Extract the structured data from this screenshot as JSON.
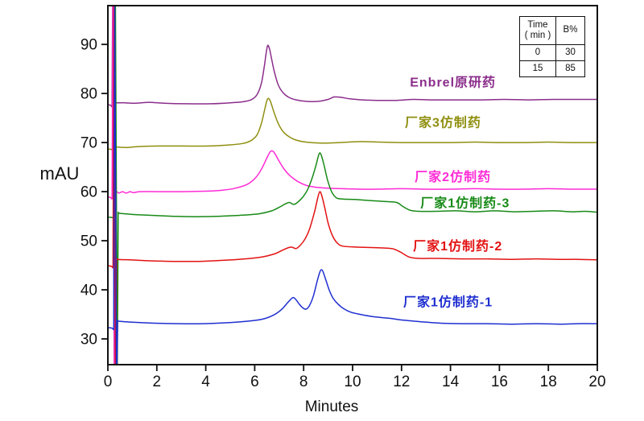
{
  "chart_data": {
    "type": "line",
    "title": "",
    "xlabel": "Minutes",
    "ylabel": "mAU",
    "xlim": [
      0,
      20
    ],
    "ylim": [
      24.75,
      97.9
    ],
    "x_ticks": [
      0,
      2,
      4,
      6,
      8,
      10,
      12,
      14,
      16,
      18,
      20
    ],
    "y_ticks": [
      30,
      40,
      50,
      60,
      70,
      80,
      90
    ],
    "grid": false,
    "axis_color": "#111111",
    "legend": "inline-colored-labels",
    "series": [
      {
        "name": "Enbrel原研药",
        "color": "#8b2e8b",
        "label_pos": [
          14.1,
          82.4
        ],
        "main_peak": {
          "time_min": 6.5,
          "apex_mau": 89.8
        },
        "baseline_mau": 78,
        "points": [
          [
            0,
            77.7
          ],
          [
            0.12,
            77.6
          ],
          [
            0.17,
            77.4
          ],
          [
            0.2,
            98
          ],
          [
            0.26,
            24.5
          ],
          [
            0.3,
            78.2
          ],
          [
            0.34,
            78.1
          ],
          [
            0.7,
            78.1
          ],
          [
            1.1,
            78.0
          ],
          [
            1.7,
            78.2
          ],
          [
            2.3,
            78.0
          ],
          [
            3.2,
            77.9
          ],
          [
            4.2,
            77.9
          ],
          [
            5.0,
            78.1
          ],
          [
            5.5,
            78.3
          ],
          [
            5.85,
            78.7
          ],
          [
            6.1,
            79.8
          ],
          [
            6.28,
            82.2
          ],
          [
            6.4,
            85.8
          ],
          [
            6.47,
            88.3
          ],
          [
            6.53,
            89.8
          ],
          [
            6.6,
            89.2
          ],
          [
            6.68,
            87.3
          ],
          [
            6.8,
            84.5
          ],
          [
            6.95,
            81.9
          ],
          [
            7.15,
            80.2
          ],
          [
            7.4,
            79.2
          ],
          [
            7.7,
            78.7
          ],
          [
            8.1,
            78.4
          ],
          [
            8.6,
            78.4
          ],
          [
            9.0,
            78.8
          ],
          [
            9.25,
            79.3
          ],
          [
            9.55,
            79.2
          ],
          [
            9.9,
            78.9
          ],
          [
            10.4,
            78.7
          ],
          [
            11.0,
            78.6
          ],
          [
            11.8,
            78.6
          ],
          [
            12.5,
            78.8
          ],
          [
            13.2,
            78.7
          ],
          [
            14.2,
            78.7
          ],
          [
            15.2,
            78.7
          ],
          [
            16.2,
            78.8
          ],
          [
            17.2,
            78.7
          ],
          [
            18.2,
            78.8
          ],
          [
            19.1,
            78.8
          ],
          [
            20,
            78.8
          ]
        ]
      },
      {
        "name": "厂家3仿制药",
        "color": "#8f8f10",
        "label_pos": [
          13.7,
          74.2
        ],
        "main_peak": {
          "time_min": 6.55,
          "apex_mau": 79.0
        },
        "baseline_mau": 69.5,
        "points": [
          [
            0,
            68.7
          ],
          [
            0.14,
            68.6
          ],
          [
            0.2,
            68.4
          ],
          [
            0.24,
            98
          ],
          [
            0.3,
            24.5
          ],
          [
            0.34,
            69.2
          ],
          [
            0.38,
            69.1
          ],
          [
            0.8,
            69.0
          ],
          [
            1.3,
            69.2
          ],
          [
            2.1,
            69.3
          ],
          [
            3.1,
            69.3
          ],
          [
            4.1,
            69.3
          ],
          [
            4.9,
            69.5
          ],
          [
            5.5,
            69.8
          ],
          [
            5.85,
            70.4
          ],
          [
            6.1,
            71.6
          ],
          [
            6.28,
            74.0
          ],
          [
            6.42,
            77.0
          ],
          [
            6.5,
            78.6
          ],
          [
            6.57,
            79.0
          ],
          [
            6.65,
            78.3
          ],
          [
            6.78,
            76.3
          ],
          [
            6.95,
            74.0
          ],
          [
            7.15,
            72.3
          ],
          [
            7.4,
            71.2
          ],
          [
            7.7,
            70.5
          ],
          [
            8.1,
            70.1
          ],
          [
            8.7,
            69.9
          ],
          [
            9.5,
            70.0
          ],
          [
            10.3,
            70.2
          ],
          [
            11.1,
            70.1
          ],
          [
            12,
            70.0
          ],
          [
            13,
            70.0
          ],
          [
            14,
            70.0
          ],
          [
            15,
            70.1
          ],
          [
            16,
            70.0
          ],
          [
            17,
            70.0
          ],
          [
            18,
            70.1
          ],
          [
            19,
            70.0
          ],
          [
            20,
            70.0
          ]
        ]
      },
      {
        "name": "厂家2仿制药",
        "color": "#ff2bd6",
        "label_pos": [
          14.1,
          63.1
        ],
        "main_peak": {
          "time_min": 6.7,
          "apex_mau": 68.3
        },
        "baseline_mau": 60.3,
        "points": [
          [
            0,
            58.9
          ],
          [
            0.12,
            58.8
          ],
          [
            0.17,
            58.6
          ],
          [
            0.21,
            98
          ],
          [
            0.27,
            24.5
          ],
          [
            0.31,
            60.0
          ],
          [
            0.45,
            59.7
          ],
          [
            0.6,
            60.0
          ],
          [
            0.75,
            59.7
          ],
          [
            0.9,
            60.0
          ],
          [
            1.05,
            59.8
          ],
          [
            1.3,
            60.0
          ],
          [
            2,
            60.0
          ],
          [
            3,
            60.0
          ],
          [
            4,
            60.1
          ],
          [
            4.7,
            60.3
          ],
          [
            5.2,
            60.7
          ],
          [
            5.7,
            61.5
          ],
          [
            6.05,
            62.9
          ],
          [
            6.3,
            64.8
          ],
          [
            6.5,
            66.9
          ],
          [
            6.63,
            68.1
          ],
          [
            6.72,
            68.3
          ],
          [
            6.82,
            67.8
          ],
          [
            7.0,
            66.2
          ],
          [
            7.2,
            64.6
          ],
          [
            7.45,
            63.2
          ],
          [
            7.75,
            62.1
          ],
          [
            8.1,
            61.3
          ],
          [
            8.5,
            60.9
          ],
          [
            9.0,
            60.7
          ],
          [
            9.6,
            60.6
          ],
          [
            10.3,
            60.5
          ],
          [
            11,
            60.5
          ],
          [
            12,
            60.6
          ],
          [
            13,
            60.5
          ],
          [
            14,
            60.5
          ],
          [
            15,
            60.6
          ],
          [
            16,
            60.5
          ],
          [
            17,
            60.5
          ],
          [
            18,
            60.6
          ],
          [
            19,
            60.5
          ],
          [
            20,
            60.5
          ]
        ]
      },
      {
        "name": "厂家1仿制药-3",
        "color": "#178a17",
        "label_pos": [
          14.6,
          57.8
        ],
        "main_peak": {
          "time_min": 8.66,
          "apex_mau": 67.9
        },
        "baseline_mau": 55.5,
        "points": [
          [
            0,
            54.8
          ],
          [
            0.2,
            54.7
          ],
          [
            0.27,
            54.5
          ],
          [
            0.31,
            98
          ],
          [
            0.38,
            24.5
          ],
          [
            0.42,
            55.7
          ],
          [
            0.46,
            55.6
          ],
          [
            0.9,
            55.4
          ],
          [
            1.6,
            55.2
          ],
          [
            2.6,
            55.0
          ],
          [
            3.6,
            54.9
          ],
          [
            4.6,
            55.0
          ],
          [
            5.5,
            55.2
          ],
          [
            6.2,
            55.5
          ],
          [
            6.7,
            56.1
          ],
          [
            7.0,
            56.8
          ],
          [
            7.25,
            57.5
          ],
          [
            7.42,
            57.8
          ],
          [
            7.58,
            57.4
          ],
          [
            7.72,
            57.7
          ],
          [
            7.95,
            58.8
          ],
          [
            8.15,
            60.3
          ],
          [
            8.35,
            62.8
          ],
          [
            8.5,
            65.3
          ],
          [
            8.6,
            67.2
          ],
          [
            8.66,
            67.9
          ],
          [
            8.73,
            67.3
          ],
          [
            8.83,
            65.5
          ],
          [
            8.98,
            62.3
          ],
          [
            9.15,
            59.9
          ],
          [
            9.35,
            58.7
          ],
          [
            9.6,
            58.5
          ],
          [
            10.1,
            58.4
          ],
          [
            10.7,
            58.2
          ],
          [
            11.3,
            58.0
          ],
          [
            11.8,
            57.8
          ],
          [
            12.05,
            57.0
          ],
          [
            12.35,
            56.2
          ],
          [
            12.7,
            56.0
          ],
          [
            13.4,
            56.0
          ],
          [
            14.2,
            56.1
          ],
          [
            15.0,
            55.9
          ],
          [
            15.8,
            56.1
          ],
          [
            16.6,
            55.9
          ],
          [
            17.4,
            56.0
          ],
          [
            18.2,
            56.1
          ],
          [
            19.0,
            55.9
          ],
          [
            19.5,
            56.0
          ],
          [
            20,
            55.8
          ]
        ]
      },
      {
        "name": "厂家1仿制药-2",
        "color": "#e31212",
        "label_pos": [
          14.3,
          49.0
        ],
        "main_peak": {
          "time_min": 8.66,
          "apex_mau": 60.0
        },
        "baseline_mau": 46,
        "points": [
          [
            0,
            44.9
          ],
          [
            0.15,
            44.8
          ],
          [
            0.21,
            44.6
          ],
          [
            0.25,
            98
          ],
          [
            0.31,
            24.5
          ],
          [
            0.36,
            46.3
          ],
          [
            0.4,
            46.2
          ],
          [
            0.9,
            46.1
          ],
          [
            1.7,
            45.9
          ],
          [
            2.7,
            45.8
          ],
          [
            3.7,
            45.8
          ],
          [
            4.7,
            46.0
          ],
          [
            5.6,
            46.3
          ],
          [
            6.3,
            46.7
          ],
          [
            6.8,
            47.3
          ],
          [
            7.15,
            48.1
          ],
          [
            7.38,
            48.6
          ],
          [
            7.52,
            48.7
          ],
          [
            7.68,
            48.4
          ],
          [
            7.85,
            49.0
          ],
          [
            8.05,
            50.3
          ],
          [
            8.25,
            52.5
          ],
          [
            8.45,
            56.0
          ],
          [
            8.58,
            58.8
          ],
          [
            8.66,
            60.0
          ],
          [
            8.74,
            59.2
          ],
          [
            8.86,
            56.8
          ],
          [
            9.0,
            53.6
          ],
          [
            9.18,
            51.0
          ],
          [
            9.38,
            49.5
          ],
          [
            9.6,
            48.9
          ],
          [
            10.2,
            48.7
          ],
          [
            10.9,
            48.6
          ],
          [
            11.6,
            48.4
          ],
          [
            11.95,
            47.7
          ],
          [
            12.3,
            46.7
          ],
          [
            12.7,
            46.4
          ],
          [
            13.5,
            46.4
          ],
          [
            14.5,
            46.3
          ],
          [
            15.5,
            46.3
          ],
          [
            16.5,
            46.2
          ],
          [
            17.5,
            46.3
          ],
          [
            18.5,
            46.2
          ],
          [
            19.2,
            46.2
          ],
          [
            20,
            46.1
          ]
        ]
      },
      {
        "name": "厂家1仿制药-1",
        "color": "#1f2fd0",
        "label_pos": [
          13.9,
          37.6
        ],
        "main_peak": {
          "time_min": 8.73,
          "apex_mau": 44.1
        },
        "baseline_mau": 33,
        "points": [
          [
            0,
            32.3
          ],
          [
            0.17,
            32.2
          ],
          [
            0.24,
            32.0
          ],
          [
            0.28,
            98
          ],
          [
            0.35,
            24.5
          ],
          [
            0.4,
            33.7
          ],
          [
            0.44,
            33.6
          ],
          [
            1.0,
            33.4
          ],
          [
            1.9,
            33.2
          ],
          [
            2.9,
            33.1
          ],
          [
            3.9,
            33.1
          ],
          [
            4.9,
            33.3
          ],
          [
            5.7,
            33.6
          ],
          [
            6.3,
            34.0
          ],
          [
            6.75,
            34.8
          ],
          [
            7.1,
            36.0
          ],
          [
            7.35,
            37.4
          ],
          [
            7.52,
            38.3
          ],
          [
            7.6,
            38.4
          ],
          [
            7.7,
            37.9
          ],
          [
            7.85,
            36.9
          ],
          [
            8.0,
            36.2
          ],
          [
            8.12,
            36.1
          ],
          [
            8.25,
            36.9
          ],
          [
            8.4,
            38.8
          ],
          [
            8.55,
            41.7
          ],
          [
            8.66,
            43.6
          ],
          [
            8.73,
            44.1
          ],
          [
            8.8,
            43.6
          ],
          [
            8.92,
            41.8
          ],
          [
            9.05,
            39.9
          ],
          [
            9.2,
            38.3
          ],
          [
            9.4,
            37.1
          ],
          [
            9.65,
            36.1
          ],
          [
            9.95,
            35.4
          ],
          [
            10.4,
            34.9
          ],
          [
            10.9,
            34.5
          ],
          [
            11.5,
            34.2
          ],
          [
            12.1,
            33.8
          ],
          [
            12.8,
            33.5
          ],
          [
            13.6,
            33.2
          ],
          [
            14.5,
            33.1
          ],
          [
            15.5,
            33.1
          ],
          [
            16.5,
            33.0
          ],
          [
            17.5,
            33.1
          ],
          [
            18.5,
            33.0
          ],
          [
            19.2,
            33.1
          ],
          [
            20,
            33.1
          ]
        ]
      }
    ]
  },
  "gradient_table": {
    "header_time_line1": "Time",
    "header_time_line2": "( min )",
    "header_b": "B%",
    "rows": [
      [
        "0",
        "30"
      ],
      [
        "15",
        "85"
      ]
    ]
  }
}
